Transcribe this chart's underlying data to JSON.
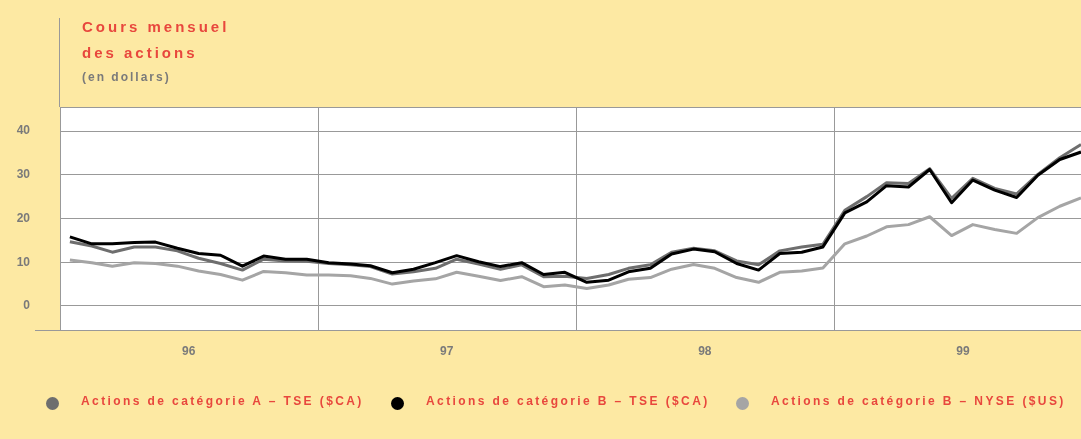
{
  "chart_data": {
    "type": "line",
    "title": "Cours mensuel des actions",
    "subtitle": "(en dollars)",
    "x": [
      "1996-01-15",
      "1996-02-15",
      "1996-03-15",
      "1996-04-15",
      "1996-05-15",
      "1996-06-15",
      "1996-07-15",
      "1996-08-15",
      "1996-09-15",
      "1996-10-15",
      "1996-11-15",
      "1996-12-15",
      "1997-01-15",
      "1997-02-15",
      "1997-03-15",
      "1997-04-15",
      "1997-05-15",
      "1997-06-15",
      "1997-07-15",
      "1997-08-15",
      "1997-09-15",
      "1997-10-15",
      "1997-11-15",
      "1997-12-15",
      "1998-01-15",
      "1998-02-15",
      "1998-03-15",
      "1998-04-15",
      "1998-05-15",
      "1998-06-15",
      "1998-07-15",
      "1998-08-15",
      "1998-09-15",
      "1998-10-15",
      "1998-11-15",
      "1998-12-15",
      "1999-01-15",
      "1999-02-15",
      "1999-03-15",
      "1999-04-15",
      "1999-05-15",
      "1999-06-15",
      "1999-07-15",
      "1999-08-15",
      "1999-09-15",
      "1999-10-15",
      "1999-11-15",
      "1999-12-15"
    ],
    "series": [
      {
        "name": "Actions de catégorie A – TSE ($CA)",
        "color": "#6e6e6e",
        "values": [
          14.7,
          13.7,
          12.3,
          13.5,
          13.5,
          12.6,
          10.9,
          9.7,
          8.2,
          10.7,
          10.3,
          10.2,
          9.7,
          9.4,
          9.0,
          7.3,
          7.8,
          8.6,
          10.7,
          9.6,
          8.4,
          9.4,
          6.7,
          6.8,
          6.3,
          7.2,
          8.6,
          9.4,
          12.3,
          13.2,
          12.6,
          10.3,
          9.4,
          12.6,
          13.5,
          14.1,
          21.9,
          25.0,
          28.2,
          28.0,
          31.4,
          24.6,
          29.2,
          26.9,
          25.6,
          30.1,
          33.9,
          36.9
        ]
      },
      {
        "name": "Actions de catégorie B – TSE ($CA)",
        "color": "#000000",
        "values": [
          15.8,
          14.2,
          14.2,
          14.5,
          14.6,
          13.2,
          12.0,
          11.6,
          9.1,
          11.4,
          10.7,
          10.7,
          9.9,
          9.6,
          9.2,
          7.6,
          8.4,
          9.9,
          11.5,
          10.1,
          9.0,
          9.9,
          7.2,
          7.7,
          5.4,
          5.9,
          7.8,
          8.6,
          11.9,
          13.0,
          12.4,
          9.7,
          8.2,
          12.0,
          12.3,
          13.5,
          21.3,
          23.8,
          27.5,
          27.2,
          31.2,
          23.6,
          28.8,
          26.5,
          24.8,
          29.9,
          33.5,
          35.2
        ]
      },
      {
        "name": "Actions de catégorie B – NYSE ($US)",
        "color": "#a5a5a5",
        "values": [
          10.5,
          9.9,
          9.1,
          9.9,
          9.7,
          9.1,
          8.0,
          7.2,
          5.9,
          7.9,
          7.6,
          7.1,
          7.1,
          6.9,
          6.3,
          5.0,
          5.7,
          6.2,
          7.7,
          6.8,
          5.8,
          6.7,
          4.4,
          4.8,
          4.0,
          4.8,
          6.1,
          6.5,
          8.4,
          9.5,
          8.6,
          6.5,
          5.4,
          7.7,
          8.0,
          8.7,
          14.2,
          16.0,
          18.1,
          18.6,
          20.4,
          16.1,
          18.6,
          17.5,
          16.6,
          20.2,
          22.8,
          24.7
        ]
      }
    ],
    "xlim": [
      "1996-01-01",
      "1999-12-15"
    ],
    "xticks": [
      {
        "value": "1996-07-01",
        "label": "96"
      },
      {
        "value": "1997-01-01",
        "label": null
      },
      {
        "value": "1997-07-01",
        "label": "97"
      },
      {
        "value": "1998-01-01",
        "label": null
      },
      {
        "value": "1998-07-01",
        "label": "98"
      },
      {
        "value": "1999-01-01",
        "label": null
      },
      {
        "value": "1999-07-01",
        "label": "99"
      }
    ],
    "ylim": [
      -5.5,
      45.5
    ],
    "yticks": [
      0,
      10,
      20,
      30,
      40
    ],
    "grid": true,
    "legend": "bottom",
    "marker": "none",
    "line_style": "solid"
  }
}
